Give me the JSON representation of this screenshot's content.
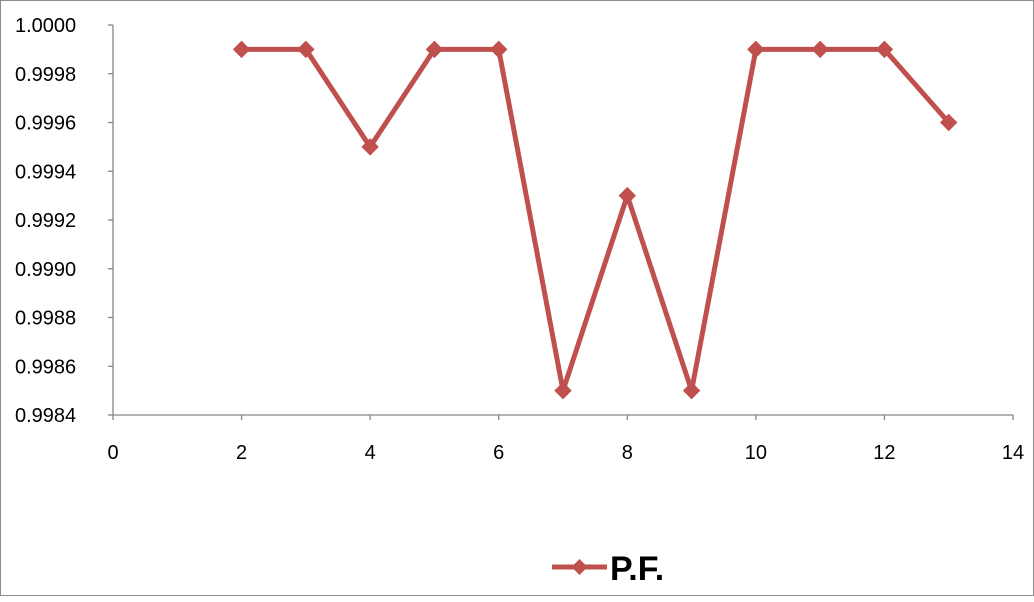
{
  "chart_data": {
    "type": "scatter",
    "title": "",
    "xlabel": "",
    "ylabel": "",
    "xlim": [
      0,
      14
    ],
    "ylim": [
      0.9984,
      1.0
    ],
    "xticks": [
      "0",
      "2",
      "4",
      "6",
      "8",
      "10",
      "12",
      "14"
    ],
    "yticks": [
      "1.0000",
      "0.9998",
      "0.9996",
      "0.9994",
      "0.9992",
      "0.9990",
      "0.9988",
      "0.9986",
      "0.9984"
    ],
    "grid": false,
    "legend_position": "bottom",
    "series": [
      {
        "name": "P.F.",
        "color": "#c0504d",
        "marker": "diamond",
        "x": [
          2,
          3,
          4,
          5,
          6,
          7,
          8,
          9,
          10,
          11,
          12,
          13
        ],
        "y": [
          0.9999,
          0.9999,
          0.9995,
          0.9999,
          0.9999,
          0.9985,
          0.9993,
          0.9985,
          0.9999,
          0.9999,
          0.9999,
          0.9996
        ]
      }
    ]
  }
}
